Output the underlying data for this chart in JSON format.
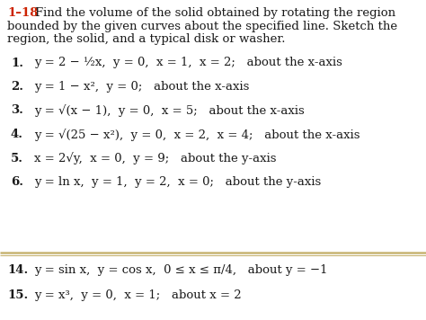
{
  "title_bold": "1–18",
  "title_lines": [
    "Find the volume of the solid obtained by rotating the region",
    "bounded by the given curves about the specified line. Sketch the",
    "region, the solid, and a typical disk or washer."
  ],
  "items": [
    {
      "num": "1.",
      "text": "y = 2 − ½x,  y = 0,  x = 1,  x = 2;   about the x-axis"
    },
    {
      "num": "2.",
      "text": "y = 1 − x²,  y = 0;   about the x-axis"
    },
    {
      "num": "3.",
      "text": "y = √(x − 1),  y = 0,  x = 5;   about the x-axis"
    },
    {
      "num": "4.",
      "text": "y = √(25 − x²),  y = 0,  x = 2,  x = 4;   about the x-axis"
    },
    {
      "num": "5.",
      "text": "x = 2√y,  x = 0,  y = 9;   about the y-axis"
    },
    {
      "num": "6.",
      "text": "y = ln x,  y = 1,  y = 2,  x = 0;   about the y-axis"
    }
  ],
  "bottom_items": [
    {
      "num": "14.",
      "text": "y = sin x,  y = cos x,  0 ≤ x ≤ π/4,   about y = −1"
    },
    {
      "num": "15.",
      "text": "y = x³,  y = 0,  x = 1;   about x = 2"
    }
  ],
  "bg_color": "#ffffff",
  "text_color": "#1a1a1a",
  "title_color": "#cc2200",
  "separator_color": "#c8b472",
  "fontsize": 9.5
}
